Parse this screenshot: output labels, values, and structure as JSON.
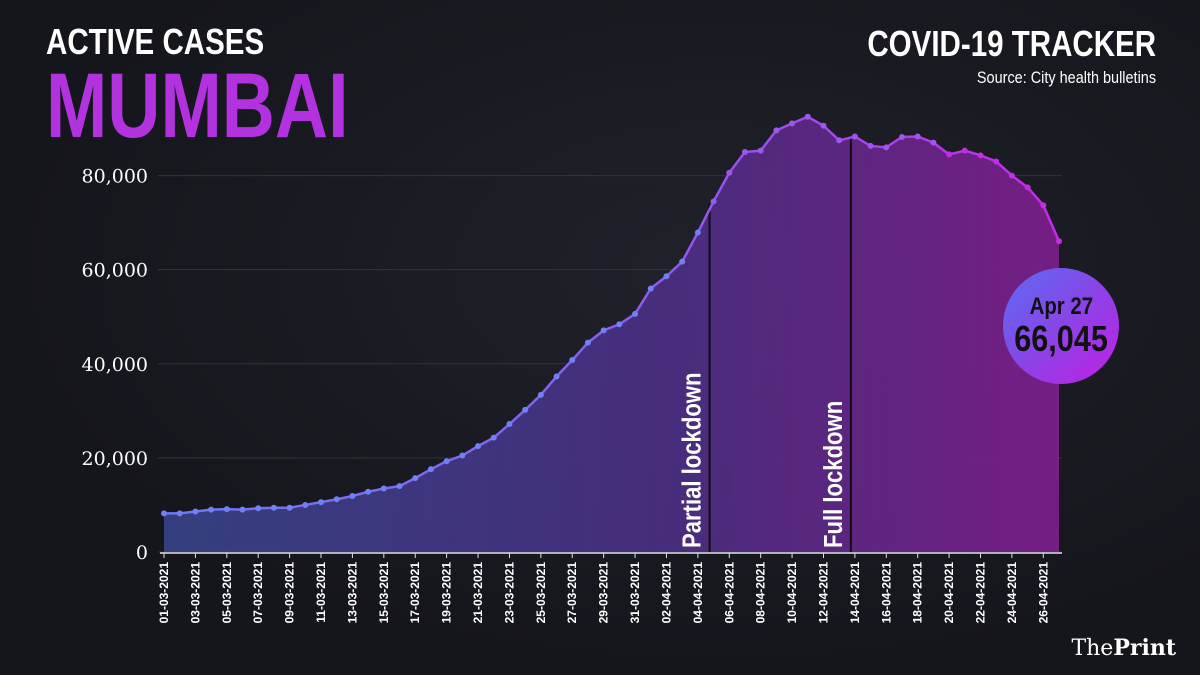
{
  "header": {
    "subtitle": "ACTIVE CASES",
    "city": "MUMBAI",
    "tracker": "COVID-19 TRACKER",
    "source": "Source: City health bulletins"
  },
  "callout": {
    "date": "Apr 27",
    "value": "66,045"
  },
  "brand": {
    "prefix": "The",
    "name": "Print"
  },
  "colors": {
    "accent": "#b232e0",
    "line_start": "#6b78f5",
    "line_end": "#c42ae8",
    "background": "#16171d"
  },
  "chart_data": {
    "type": "area",
    "ylim": [
      0,
      95000
    ],
    "yticks": [
      0,
      20000,
      40000,
      60000,
      80000
    ],
    "ytick_labels": [
      "0",
      "20,000",
      "40,000",
      "60,000",
      "80,000"
    ],
    "xtick_labels": [
      "01-03-2021",
      "03-03-2021",
      "05-03-2021",
      "07-03-2021",
      "09-03-2021",
      "11-03-2021",
      "13-03-2021",
      "15-03-2021",
      "17-03-2021",
      "19-03-2021",
      "21-03-2021",
      "23-03-2021",
      "25-03-2021",
      "27-03-2021",
      "29-03-2021",
      "31-03-2021",
      "02-04-2021",
      "04-04-2021",
      "06-04-2021",
      "08-04-2021",
      "10-04-2021",
      "12-04-2021",
      "14-04-2021",
      "16-04-2021",
      "18-04-2021",
      "20-04-2021",
      "22-04-2021",
      "24-04-2021",
      "26-04-2021"
    ],
    "x": [
      "01-03-2021",
      "02-03-2021",
      "03-03-2021",
      "04-03-2021",
      "05-03-2021",
      "06-03-2021",
      "07-03-2021",
      "08-03-2021",
      "09-03-2021",
      "10-03-2021",
      "11-03-2021",
      "12-03-2021",
      "13-03-2021",
      "14-03-2021",
      "15-03-2021",
      "16-03-2021",
      "17-03-2021",
      "18-03-2021",
      "19-03-2021",
      "20-03-2021",
      "21-03-2021",
      "22-03-2021",
      "23-03-2021",
      "24-03-2021",
      "25-03-2021",
      "26-03-2021",
      "27-03-2021",
      "28-03-2021",
      "29-03-2021",
      "30-03-2021",
      "31-03-2021",
      "01-04-2021",
      "02-04-2021",
      "03-04-2021",
      "04-04-2021",
      "05-04-2021",
      "06-04-2021",
      "07-04-2021",
      "08-04-2021",
      "09-04-2021",
      "10-04-2021",
      "11-04-2021",
      "12-04-2021",
      "13-04-2021",
      "14-04-2021",
      "15-04-2021",
      "16-04-2021",
      "17-04-2021",
      "18-04-2021",
      "19-04-2021",
      "20-04-2021",
      "21-04-2021",
      "22-04-2021",
      "23-04-2021",
      "24-04-2021",
      "25-04-2021",
      "26-04-2021",
      "27-04-2021"
    ],
    "series": [
      {
        "values": [
          8200,
          8200,
          8600,
          9000,
          9100,
          9000,
          9300,
          9400,
          9400,
          10000,
          10600,
          11200,
          11900,
          12800,
          13500,
          14000,
          15700,
          17600,
          19300,
          20500,
          22500,
          24300,
          27200,
          30200,
          33400,
          37300,
          40800,
          44500,
          47100,
          48400,
          50600,
          56000,
          58600,
          61700,
          67900,
          74500,
          80600,
          85000,
          85300,
          89600,
          91100,
          92500,
          90600,
          87500,
          88300,
          86300,
          86000,
          88200,
          88300,
          87000,
          84500,
          85300,
          84300,
          83000,
          80000,
          77500,
          73700,
          66045
        ]
      }
    ],
    "annotations": [
      {
        "label": "Partial lockdown",
        "x": "05-04-2021"
      },
      {
        "label": "Full lockdown",
        "x": "14-04-2021"
      }
    ],
    "grid": true
  }
}
